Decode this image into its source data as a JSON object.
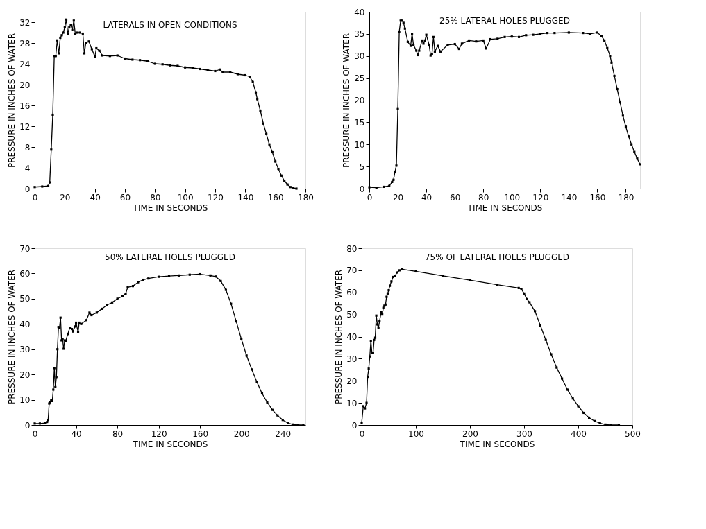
{
  "chart_data": [
    {
      "type": "line",
      "title": "LATERALS IN OPEN CONDITIONS",
      "xlabel": "TIME IN SECONDS",
      "ylabel": "PRESSURE IN INCHES OF WATER",
      "xlim": [
        0,
        180
      ],
      "ylim": [
        0,
        34
      ],
      "xticks": [
        0,
        20,
        40,
        60,
        80,
        100,
        120,
        140,
        160,
        180
      ],
      "yticks": [
        0,
        4,
        8,
        12,
        16,
        20,
        24,
        28,
        32
      ],
      "grid": false,
      "marker": "square",
      "line_style": "solid",
      "series": [
        {
          "color": "#000000",
          "x": [
            0,
            5,
            9,
            10,
            11,
            12,
            13,
            14,
            15,
            16,
            17,
            18,
            19,
            20,
            21,
            22,
            23,
            24,
            25,
            26,
            27,
            28,
            30,
            32,
            33,
            34,
            36,
            38,
            40,
            41,
            43,
            45,
            50,
            55,
            60,
            65,
            70,
            75,
            80,
            85,
            90,
            95,
            100,
            105,
            110,
            115,
            120,
            123,
            125,
            130,
            135,
            140,
            143,
            145,
            147,
            148,
            150,
            152,
            154,
            156,
            158,
            160,
            162,
            164,
            166,
            168,
            170,
            172,
            174
          ],
          "values": [
            0.3,
            0.4,
            0.5,
            1.2,
            7.5,
            14.2,
            25.5,
            25.5,
            28.5,
            26,
            29,
            29.5,
            30,
            31,
            32.5,
            29.8,
            31,
            31.5,
            30.5,
            32.3,
            29.7,
            30,
            30,
            29.8,
            26,
            28,
            28.3,
            26.8,
            25.4,
            27,
            26.5,
            25.6,
            25.5,
            25.6,
            25,
            24.8,
            24.7,
            24.5,
            24,
            23.9,
            23.7,
            23.6,
            23.3,
            23.2,
            23,
            22.8,
            22.6,
            22.9,
            22.4,
            22.4,
            22,
            21.8,
            21.5,
            20.5,
            18.5,
            17.2,
            15,
            12.5,
            10.5,
            8.5,
            7,
            5.2,
            3.8,
            2.5,
            1.5,
            0.8,
            0.3,
            0.1,
            0
          ]
        }
      ]
    },
    {
      "type": "line",
      "title": "25% LATERAL HOLES PLUGGED",
      "xlabel": "TIME IN SECONDS",
      "ylabel": "PRESSURE IN INCHES OF WATER",
      "xlim": [
        0,
        190
      ],
      "ylim": [
        0,
        40
      ],
      "xticks": [
        0,
        20,
        40,
        60,
        80,
        100,
        120,
        140,
        160,
        180
      ],
      "yticks": [
        0,
        5,
        10,
        15,
        20,
        25,
        30,
        35,
        40
      ],
      "grid": false,
      "marker": "square",
      "line_style": "solid",
      "series": [
        {
          "color": "#000000",
          "x": [
            0,
            5,
            10,
            14,
            16,
            17,
            18,
            19,
            20,
            21,
            22,
            23,
            24,
            25,
            27,
            29,
            30,
            31,
            33,
            34,
            35,
            37,
            38,
            39,
            40,
            42,
            43,
            44,
            45,
            46,
            48,
            50,
            55,
            60,
            63,
            65,
            70,
            75,
            80,
            82,
            85,
            90,
            95,
            100,
            105,
            110,
            115,
            120,
            125,
            130,
            140,
            150,
            155,
            160,
            163,
            165,
            167,
            169,
            170,
            172,
            174,
            176,
            178,
            180,
            182,
            184,
            186,
            188,
            190
          ],
          "values": [
            0.3,
            0.2,
            0.4,
            0.6,
            1.5,
            2,
            3.8,
            5.2,
            18,
            35.5,
            38,
            38,
            37.5,
            36.2,
            33.2,
            32.3,
            35,
            32.5,
            31.2,
            30.2,
            31.2,
            33.5,
            32.8,
            33.5,
            34.8,
            32.5,
            30.1,
            30.5,
            34.3,
            31,
            32.3,
            31,
            32.5,
            32.7,
            31.6,
            32.8,
            33.5,
            33.3,
            33.5,
            31.7,
            33.8,
            33.9,
            34.3,
            34.4,
            34.3,
            34.7,
            34.8,
            35,
            35.2,
            35.2,
            35.3,
            35.2,
            35,
            35.3,
            34.5,
            33.5,
            31.8,
            30,
            28.5,
            25.5,
            22.5,
            19.5,
            16.5,
            14,
            11.8,
            10,
            8.3,
            6.8,
            5.5
          ]
        }
      ]
    },
    {
      "type": "line",
      "title": "50% LATERAL HOLES PLUGGED",
      "xlabel": "TIME IN SECONDS",
      "ylabel": "PRESSURE IN INCHES OF WATER",
      "xlim": [
        0,
        262
      ],
      "ylim": [
        0,
        70
      ],
      "xticks": [
        0,
        40,
        80,
        120,
        160,
        200,
        240
      ],
      "yticks": [
        0,
        10,
        20,
        30,
        40,
        50,
        60,
        70
      ],
      "grid": false,
      "marker": "square",
      "line_style": "solid",
      "series": [
        {
          "color": "#000000",
          "x": [
            0,
            5,
            10,
            12,
            13,
            14,
            15,
            16,
            17,
            18,
            19,
            20,
            21,
            22,
            23,
            24,
            25,
            26,
            27,
            28,
            29,
            30,
            32,
            34,
            36,
            37,
            39,
            40,
            42,
            43,
            45,
            50,
            53,
            55,
            60,
            65,
            70,
            75,
            80,
            85,
            88,
            90,
            95,
            100,
            105,
            110,
            120,
            130,
            140,
            150,
            160,
            170,
            175,
            180,
            185,
            190,
            195,
            200,
            205,
            210,
            215,
            220,
            225,
            230,
            235,
            240,
            245,
            250,
            255,
            260
          ],
          "values": [
            0.6,
            0.6,
            0.8,
            1.2,
            2,
            8.5,
            9,
            10,
            9.5,
            14,
            22.5,
            15,
            19,
            30,
            38.8,
            38.5,
            42.5,
            33.5,
            34,
            30.2,
            33.5,
            33.2,
            36,
            38.5,
            38,
            37,
            39,
            40.5,
            36.8,
            40.5,
            40,
            41.5,
            44.5,
            43.5,
            44.5,
            46,
            47.5,
            48.5,
            50,
            51,
            52,
            54.5,
            55,
            56.5,
            57.5,
            58,
            58.7,
            59,
            59.2,
            59.5,
            59.7,
            59.2,
            58.8,
            57,
            53.5,
            48,
            41,
            34,
            27.5,
            22,
            17,
            12.5,
            9,
            6,
            3.8,
            2,
            0.8,
            0.2,
            0,
            0
          ]
        }
      ]
    },
    {
      "type": "line",
      "title": "75% OF LATERAL HOLES PLUGGED",
      "xlabel": "TIME IN SECONDS",
      "ylabel": "PRESSURE IN INCHES OF WATER",
      "xlim": [
        0,
        500
      ],
      "ylim": [
        0,
        80
      ],
      "xticks": [
        0,
        100,
        200,
        300,
        400,
        500
      ],
      "yticks": [
        0,
        10,
        20,
        30,
        40,
        50,
        60,
        70,
        80
      ],
      "grid": false,
      "marker": "square",
      "line_style": "solid",
      "series": [
        {
          "color": "#000000",
          "x": [
            0,
            3,
            6,
            9,
            11,
            13,
            15,
            17,
            19,
            21,
            23,
            25,
            27,
            29,
            31,
            33,
            36,
            38,
            40,
            42,
            44,
            46,
            48,
            50,
            52,
            55,
            58,
            62,
            65,
            70,
            75,
            100,
            150,
            200,
            250,
            290,
            295,
            300,
            305,
            310,
            320,
            330,
            340,
            350,
            360,
            370,
            380,
            390,
            400,
            410,
            420,
            430,
            440,
            450,
            460,
            475
          ],
          "values": [
            1,
            8.5,
            7.5,
            10,
            21.8,
            25.5,
            31,
            38,
            32.5,
            32.5,
            38.5,
            39.5,
            49.5,
            45.5,
            44,
            47,
            51,
            50,
            53,
            54,
            54.5,
            58,
            59.5,
            61,
            63,
            65,
            67,
            67.5,
            69,
            70,
            70.5,
            69.5,
            67.5,
            65.5,
            63.5,
            62,
            61.5,
            59.5,
            57,
            55.5,
            51.5,
            45,
            38.5,
            32,
            26,
            21,
            16,
            12,
            8.5,
            5.5,
            3.3,
            1.8,
            0.8,
            0.2,
            0,
            0
          ]
        }
      ]
    }
  ]
}
